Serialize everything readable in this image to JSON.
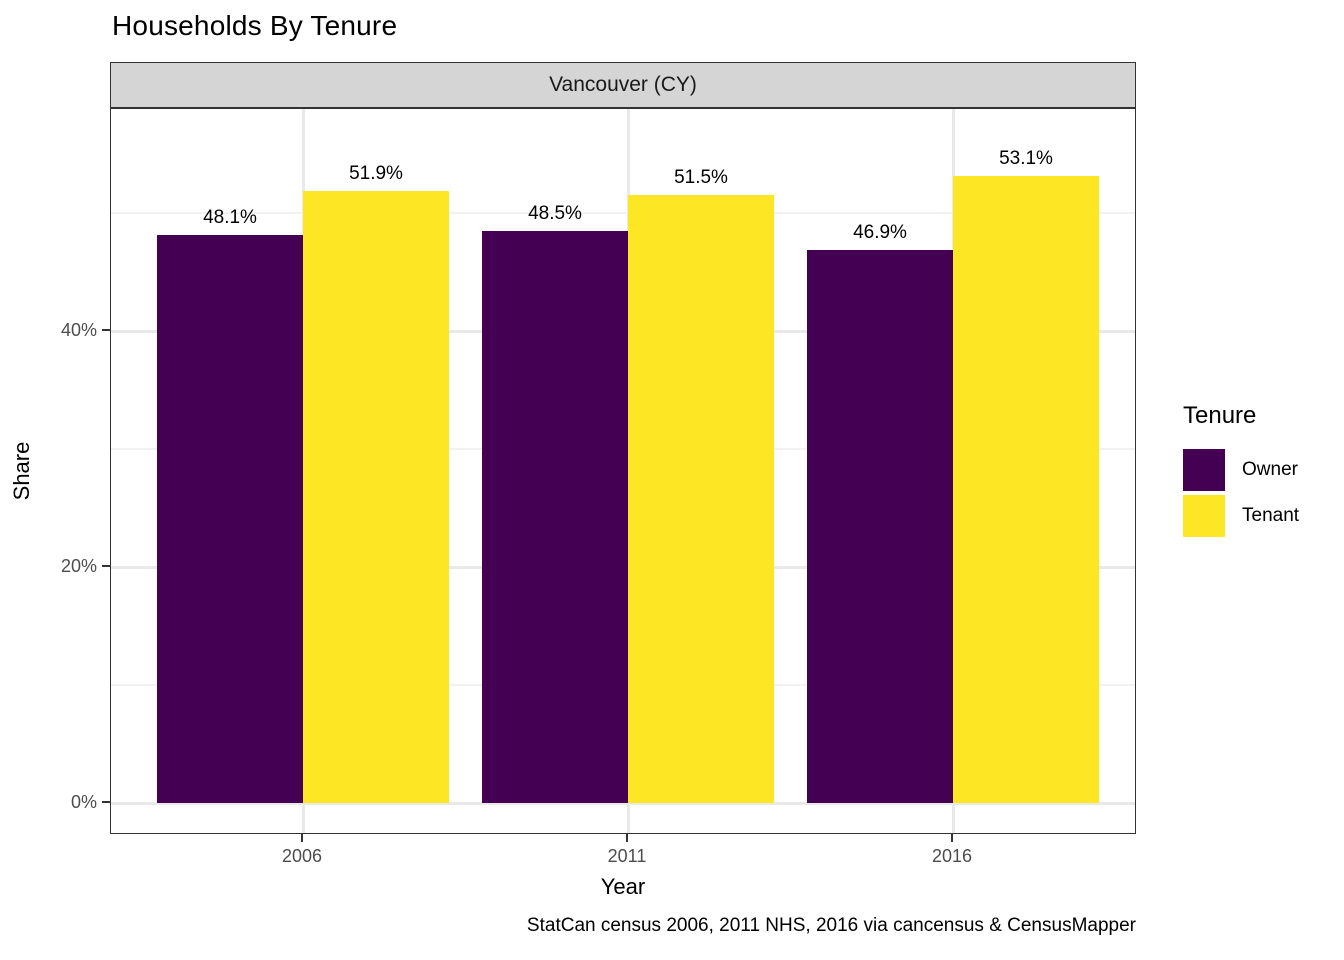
{
  "title": "Households By Tenure",
  "facet_label": "Vancouver (CY)",
  "caption": "StatCan census 2006, 2011 NHS, 2016 via cancensus & CensusMapper",
  "chart_data": {
    "type": "bar",
    "title": "Households By Tenure",
    "facet": "Vancouver (CY)",
    "categories": [
      "2006",
      "2011",
      "2016"
    ],
    "series": [
      {
        "name": "Owner",
        "color": "#440154",
        "values": [
          48.1,
          48.5,
          46.9
        ],
        "labels": [
          "48.1%",
          "48.5%",
          "46.9%"
        ]
      },
      {
        "name": "Tenant",
        "color": "#FDE725",
        "values": [
          51.9,
          51.5,
          53.1
        ],
        "labels": [
          "51.9%",
          "51.5%",
          "53.1%"
        ]
      }
    ],
    "xlabel": "Year",
    "ylabel": "Share",
    "legend_title": "Tenure",
    "legend_position": "right",
    "ylim": [
      0,
      58.8
    ],
    "yticks": [
      {
        "value": 0,
        "label": "0%"
      },
      {
        "value": 20,
        "label": "20%"
      },
      {
        "value": 40,
        "label": "40%"
      }
    ],
    "y_minor": [
      10,
      30,
      50
    ],
    "grid": true,
    "bar_value_labels_shown": true,
    "colors": {
      "owner": "#440154",
      "tenant": "#FDE725",
      "strip_background": "#d5d5d5",
      "panel_border": "#333333",
      "grid_major": "#e9e9e9",
      "grid_minor": "#f2f2f2",
      "tick_label": "#4d4d4d",
      "text": "#000000",
      "background": "#ffffff"
    }
  }
}
